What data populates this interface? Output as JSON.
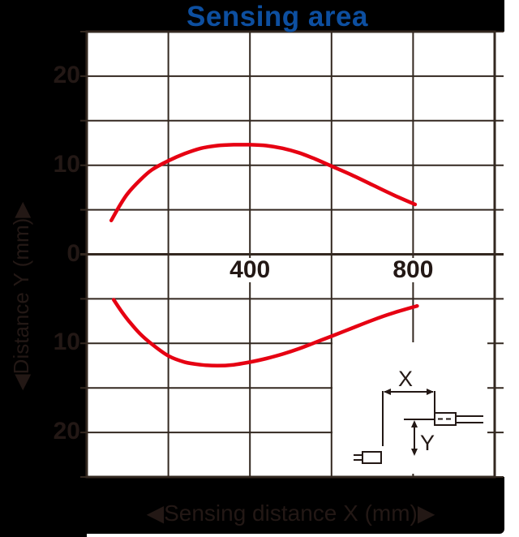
{
  "title": {
    "text": "Sensing area"
  },
  "axes": {
    "y_label": "◀Distance Y (mm)▶",
    "x_label": "◀Sensing distance X (mm)▶"
  },
  "inset": {
    "x_label": "X",
    "y_label": "Y"
  },
  "colors": {
    "panel": "#000000",
    "title_blue": "#0d4fa0",
    "dark_text": "#231815",
    "grid": "#332820",
    "curve_red": "#e60012"
  },
  "chart_data": {
    "type": "line",
    "title": "Sensing area",
    "xlabel": "Sensing distance X (mm)",
    "ylabel": "Distance Y (mm)",
    "xlim": [
      0,
      1000
    ],
    "ylim": [
      -25,
      25
    ],
    "x_grid_step": 200,
    "y_grid_step": 5,
    "grid": true,
    "legend": "none",
    "x_tick_labels": [
      {
        "label": "400",
        "x": 400
      },
      {
        "label": "800",
        "x": 800
      }
    ],
    "y_tick_labels": [
      {
        "label": "20",
        "y": 20
      },
      {
        "label": "10",
        "y": 10
      },
      {
        "label": "0",
        "y": 0
      },
      {
        "label": "10",
        "y": -10
      },
      {
        "label": "20",
        "y": -20
      }
    ],
    "series": [
      {
        "name": "upper-sensing-boundary",
        "color": "#e60012",
        "points": [
          [
            60,
            3.8
          ],
          [
            80,
            5.4
          ],
          [
            100,
            6.8
          ],
          [
            130,
            8.3
          ],
          [
            160,
            9.5
          ],
          [
            200,
            10.5
          ],
          [
            240,
            11.3
          ],
          [
            280,
            11.9
          ],
          [
            320,
            12.2
          ],
          [
            360,
            12.3
          ],
          [
            400,
            12.3
          ],
          [
            440,
            12.2
          ],
          [
            480,
            11.9
          ],
          [
            520,
            11.4
          ],
          [
            560,
            10.7
          ],
          [
            600,
            9.9
          ],
          [
            650,
            8.9
          ],
          [
            700,
            7.8
          ],
          [
            750,
            6.7
          ],
          [
            805,
            5.6
          ]
        ]
      },
      {
        "name": "lower-sensing-boundary",
        "color": "#e60012",
        "points": [
          [
            66,
            -5.1
          ],
          [
            85,
            -6.4
          ],
          [
            105,
            -7.6
          ],
          [
            130,
            -8.9
          ],
          [
            160,
            -10.1
          ],
          [
            200,
            -11.4
          ],
          [
            240,
            -12.1
          ],
          [
            280,
            -12.4
          ],
          [
            320,
            -12.5
          ],
          [
            360,
            -12.4
          ],
          [
            400,
            -12.1
          ],
          [
            440,
            -11.7
          ],
          [
            480,
            -11.2
          ],
          [
            520,
            -10.6
          ],
          [
            560,
            -9.9
          ],
          [
            600,
            -9.2
          ],
          [
            650,
            -8.3
          ],
          [
            700,
            -7.4
          ],
          [
            750,
            -6.6
          ],
          [
            810,
            -5.8
          ]
        ]
      }
    ]
  }
}
